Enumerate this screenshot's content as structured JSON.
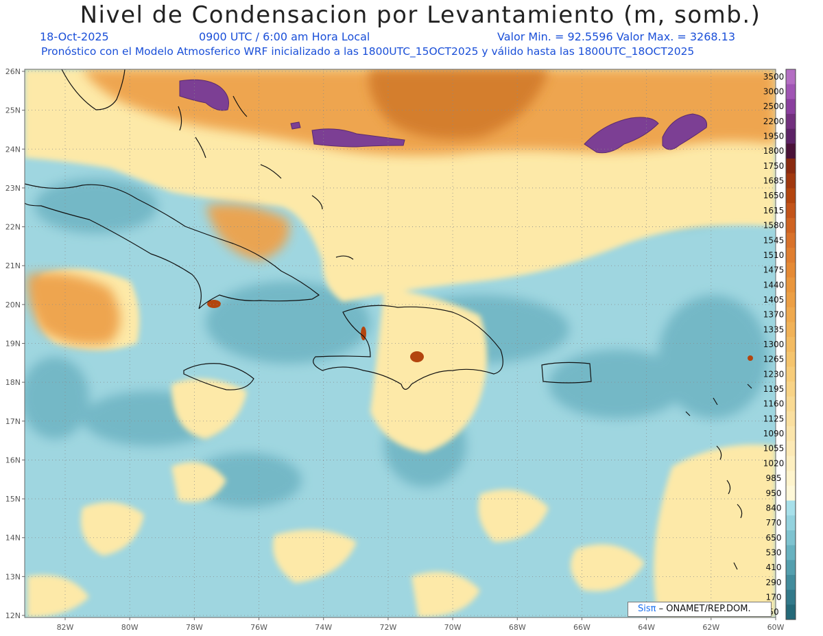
{
  "title": "Nivel de Condensacion por Levantamiento (m, somb.)",
  "date": "18-Oct-2025",
  "time": "0900 UTC / 6:00 am Hora Local",
  "minmax": "Valor Min. = 92.5596   Valor Max. = 3268.13",
  "model_line": "Pronóstico con el Modelo Atmosferico WRF inicializado a las 1800UTC_15OCT2025 y válido hasta las  1800UTC_18OCT2025",
  "credit": {
    "logo": "Sisπ",
    "org": "– ONAMET/REP.DOM."
  },
  "lat_labels": [
    "26N",
    "25N",
    "24N",
    "23N",
    "22N",
    "21N",
    "20N",
    "19N",
    "18N",
    "17N",
    "16N",
    "15N",
    "14N",
    "13N",
    "12N"
  ],
  "lon_labels": [
    "82W",
    "80W",
    "78W",
    "76W",
    "74W",
    "72W",
    "70W",
    "68W",
    "66W",
    "64W",
    "62W",
    "60W"
  ],
  "colorbar": {
    "labels": [
      "3500",
      "3000",
      "2500",
      "2200",
      "1950",
      "1800",
      "1750",
      "1685",
      "1650",
      "1615",
      "1580",
      "1545",
      "1510",
      "1475",
      "1440",
      "1405",
      "1370",
      "1335",
      "1300",
      "1265",
      "1230",
      "1195",
      "1160",
      "1125",
      "1090",
      "1055",
      "1020",
      "985",
      "950",
      "840",
      "770",
      "650",
      "530",
      "410",
      "290",
      "170",
      "50"
    ],
    "colors": [
      "#b46ec3",
      "#a055b4",
      "#8a3f9e",
      "#72307e",
      "#5c2266",
      "#4a1238",
      "#8a2a10",
      "#a1380f",
      "#b3450f",
      "#c3541a",
      "#cf6322",
      "#d9722b",
      "#e07e30",
      "#e58a35",
      "#e9963d",
      "#ec9f45",
      "#efa94e",
      "#f1b258",
      "#f3bb62",
      "#f5c46d",
      "#f7cc79",
      "#f8d386",
      "#f9da93",
      "#fadf9f",
      "#fbe5ab",
      "#fce9b5",
      "#fdefc0",
      "#fef4cc",
      "#fef8d8",
      "#a7e0ea",
      "#93d2de",
      "#7ec3d0",
      "#68b2c0",
      "#549fae",
      "#428c9c",
      "#32798a",
      "#246978"
    ]
  },
  "colors": {
    "ocean": "#9fd6e0",
    "ocean_dark": "#5ea6b6",
    "yellow": "#fde9a8",
    "orange": "#eea24c",
    "dark_orange": "#d27a2c",
    "purple": "#7c3f94",
    "coast": "#111111",
    "title_blue": "#1a4fd8"
  }
}
